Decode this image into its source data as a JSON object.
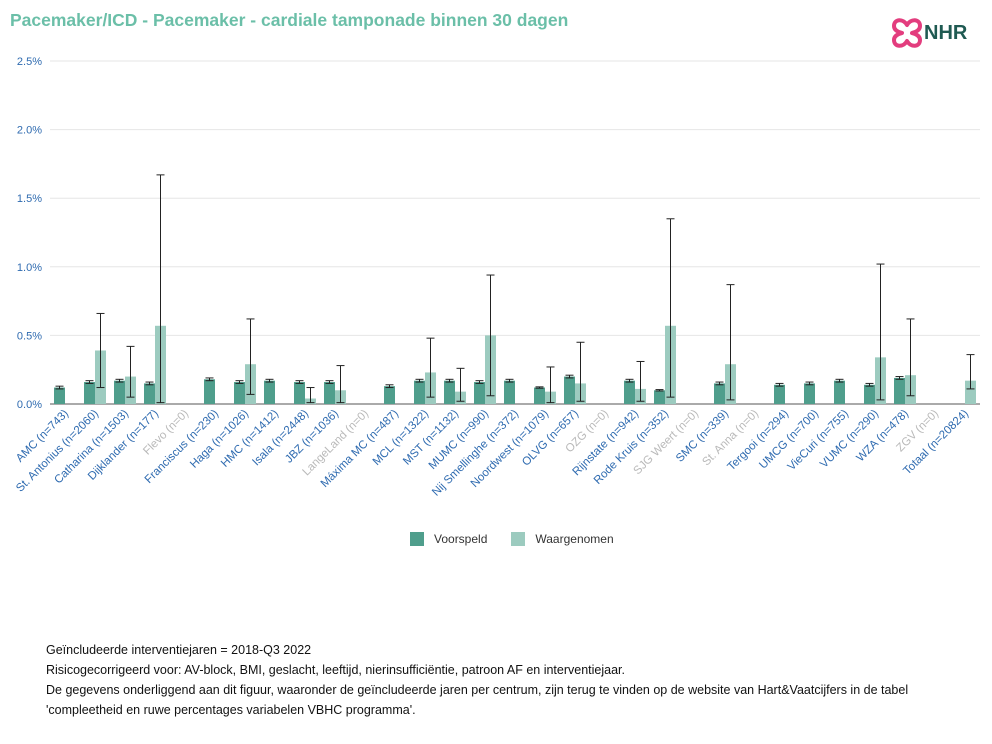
{
  "title": "Pacemaker/ICD - Pacemaker - cardiale tamponade binnen 30 dagen",
  "logo_text": "NHR",
  "colors": {
    "title": "#6bbfa8",
    "voorspeld": "#4f9e8c",
    "waargenomen": "#9ccbbf",
    "label_active": "#2f6bb0",
    "label_inactive": "#b9b9b9",
    "logo_mark": "#e33d7e"
  },
  "legend": {
    "voorspeld": "Voorspeld",
    "waargenomen": "Waargenomen"
  },
  "footer": {
    "line1": "Geïncludeerde interventiejaren = 2018-Q3 2022",
    "line2": "Risicogecorrigeerd voor: AV-block, BMI, geslacht, leeftijd, nierinsufficiëntie, patroon AF en interventiejaar.",
    "line3": "De gegevens onderliggend aan dit figuur, waaronder de geïncludeerde jaren per centrum, zijn terug te vinden op de website van Hart&Vaatcijfers in de tabel",
    "line4": "'compleetheid en ruwe percentages variabelen VBHC programma'."
  },
  "chart_data": {
    "type": "bar",
    "ylim": [
      0,
      2.5
    ],
    "yticks": [
      "0.0%",
      "0.5%",
      "1.0%",
      "1.5%",
      "2.0%",
      "2.5%"
    ],
    "grid": true,
    "legend_position": "bottom",
    "categories": [
      "AMC (n=743)",
      "St. Antonius (n=2060)",
      "Catharina (n=1503)",
      "Dijklander (n=177)",
      "Flevo (n=0)",
      "Franciscus (n=230)",
      "Haga (n=1026)",
      "HMC (n=1412)",
      "Isala (n=2448)",
      "JBZ (n=1036)",
      "LangeLand (n=0)",
      "Máxima MC (n=487)",
      "MCL (n=1322)",
      "MST (n=1132)",
      "MUMC (n=990)",
      "Nij Smellinghe (n=372)",
      "Noordwest (n=1079)",
      "OLVG (n=657)",
      "OZG (n=0)",
      "Rijnstate (n=942)",
      "Rode Kruis (n=352)",
      "SJG Weert (n=0)",
      "SMC (n=339)",
      "St. Anna (n=0)",
      "Tergooi (n=294)",
      "UMCG (n=700)",
      "VieCuri (n=755)",
      "VUMC (n=290)",
      "WZA (n=478)",
      "ZGV (n=0)",
      "Totaal (n=20824)"
    ],
    "inactive": [
      false,
      false,
      false,
      false,
      true,
      false,
      false,
      false,
      false,
      false,
      true,
      false,
      false,
      false,
      false,
      false,
      false,
      false,
      true,
      false,
      false,
      true,
      false,
      true,
      false,
      false,
      false,
      false,
      false,
      true,
      false
    ],
    "series": [
      {
        "name": "Voorspeld",
        "values": [
          0.12,
          0.16,
          0.17,
          0.15,
          null,
          0.18,
          0.16,
          0.17,
          0.16,
          0.16,
          null,
          0.13,
          0.17,
          0.17,
          0.16,
          0.17,
          0.12,
          0.2,
          null,
          0.17,
          0.1,
          null,
          0.15,
          null,
          0.14,
          0.15,
          0.17,
          0.14,
          0.19,
          null,
          null
        ],
        "error_low": [
          0.11,
          0.15,
          0.16,
          0.14,
          null,
          0.17,
          0.15,
          0.16,
          0.15,
          0.15,
          null,
          0.12,
          0.16,
          0.16,
          0.15,
          0.16,
          0.115,
          0.19,
          null,
          0.16,
          0.095,
          null,
          0.14,
          null,
          0.13,
          0.14,
          0.16,
          0.13,
          0.18,
          null,
          null
        ],
        "error_high": [
          0.13,
          0.17,
          0.18,
          0.16,
          null,
          0.19,
          0.17,
          0.18,
          0.17,
          0.17,
          null,
          0.14,
          0.18,
          0.18,
          0.17,
          0.18,
          0.125,
          0.21,
          null,
          0.18,
          0.105,
          null,
          0.16,
          null,
          0.15,
          0.16,
          0.18,
          0.15,
          0.2,
          null,
          null
        ]
      },
      {
        "name": "Waargenomen",
        "values": [
          0,
          0.39,
          0.2,
          0.57,
          null,
          0,
          0.29,
          0,
          0.04,
          0.1,
          null,
          0,
          0.23,
          0.09,
          0.5,
          0,
          0.09,
          0.15,
          null,
          0.11,
          0.57,
          null,
          0.29,
          null,
          0,
          0,
          0,
          0.34,
          0.21,
          null,
          0.17
        ],
        "error_low": [
          0,
          0.12,
          0.05,
          0.01,
          null,
          0,
          0.07,
          0,
          0.01,
          0.01,
          null,
          0,
          0.05,
          0.02,
          0.06,
          0,
          0.01,
          0.02,
          null,
          0.02,
          0.05,
          null,
          0.03,
          null,
          0,
          0,
          0,
          0.03,
          0.06,
          null,
          0.11
        ],
        "error_high": [
          0,
          0.66,
          0.42,
          1.67,
          null,
          0,
          0.62,
          0,
          0.12,
          0.28,
          null,
          0,
          0.48,
          0.26,
          0.94,
          0,
          0.27,
          0.45,
          null,
          0.31,
          1.35,
          null,
          0.87,
          null,
          0,
          0,
          0,
          1.02,
          0.62,
          null,
          0.36
        ]
      }
    ]
  }
}
